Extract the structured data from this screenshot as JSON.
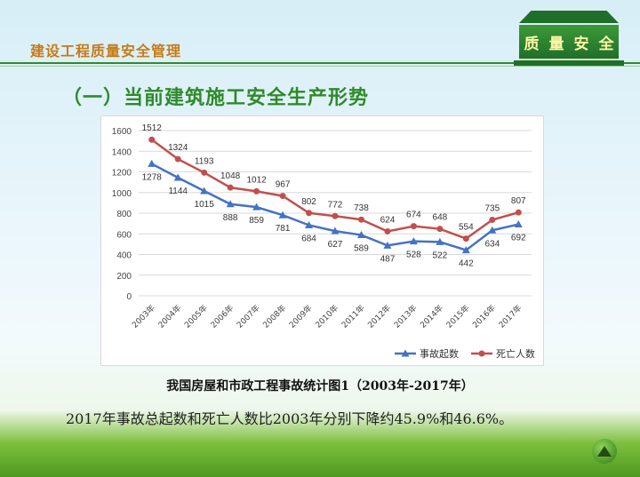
{
  "header": {
    "title": "建设工程质量安全管理",
    "badge_chars": [
      "质",
      "量",
      "安",
      "全"
    ]
  },
  "page_heading": "（一）当前建筑施工安全生产形势",
  "caption": "我国房屋和市政工程事故统计图1（2003年-2017年）",
  "summary": "2017年事故总起数和死亡人数比2003年分别下降约45.9%和46.6%。",
  "colors": {
    "series_accidents": "#4472c4",
    "series_deaths": "#c0504d",
    "accent_green": "#2f8a2a",
    "header_orange": "#c77a16"
  },
  "icons": {
    "nav_button": "up-triangle-icon"
  },
  "chart_data": {
    "type": "line",
    "title": "",
    "xlabel": "",
    "ylabel": "",
    "ylim": [
      0,
      1600
    ],
    "yticks": [
      0,
      200,
      400,
      600,
      800,
      1000,
      1200,
      1400,
      1600
    ],
    "grid": true,
    "legend": "bottom-right",
    "categories": [
      "2003年",
      "2004年",
      "2005年",
      "2006年",
      "2007年",
      "2008年",
      "2009年",
      "2010年",
      "2011年",
      "2012年",
      "2013年",
      "2014年",
      "2015年",
      "2016年",
      "2017年"
    ],
    "series": [
      {
        "name": "事故起数",
        "color": "#4472c4",
        "marker": "triangle",
        "values": [
          1278,
          1144,
          1015,
          888,
          859,
          781,
          684,
          627,
          589,
          487,
          528,
          522,
          442,
          634,
          692
        ]
      },
      {
        "name": "死亡人数",
        "color": "#c0504d",
        "marker": "circle",
        "values": [
          1512,
          1324,
          1193,
          1048,
          1012,
          967,
          802,
          772,
          738,
          624,
          674,
          648,
          554,
          735,
          807
        ]
      }
    ]
  }
}
